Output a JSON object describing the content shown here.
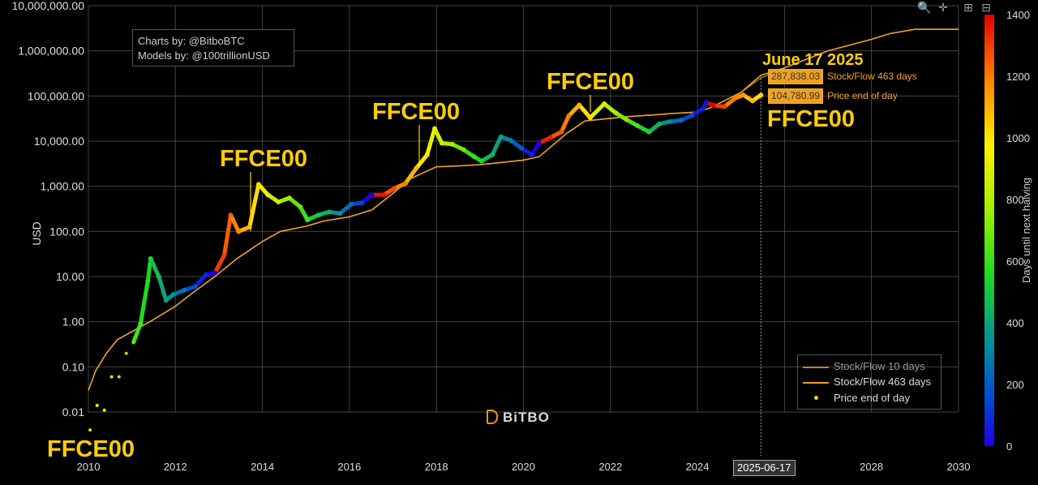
{
  "toolbar": {
    "zoom_label": "Zoom",
    "pan_label": "Pan",
    "zoom_in_label": "Zoom in",
    "zoom_out_label": "Zoom out"
  },
  "credits": {
    "line1": "Charts by: @BitboBTC",
    "line2": "Models by: @100trillionUSD"
  },
  "brand": "BiTBO",
  "annotations": {
    "date_title": "June 17 2025",
    "halving_markers": [
      "FFCE00",
      "FFCE00",
      "FFCE00",
      "FFCE00",
      "FFCE00"
    ]
  },
  "hover": {
    "x_label": "2025-06-17",
    "sf_value": "287,838.03",
    "sf_name": "Stock/Flow 463 days",
    "price_value": "104,780.99",
    "price_name": "Price end of day"
  },
  "colors": {
    "background": "#000000",
    "grid": "#444444",
    "accent": "#f0a020",
    "annotation": "#ffce00",
    "sf10": "#b8862b",
    "sf463": "#f0a020"
  },
  "chart_data": {
    "type": "scatter",
    "title": "",
    "xlabel": "",
    "ylabel": "USD",
    "x_scale": "date",
    "y_scale": "log",
    "xlim": [
      "2010-01-01",
      "2030-01-01"
    ],
    "ylim": [
      0.01,
      10000000
    ],
    "x_ticks": [
      "2010",
      "2012",
      "2014",
      "2016",
      "2018",
      "2020",
      "2022",
      "2024",
      "2026",
      "2028",
      "2030"
    ],
    "y_ticks": [
      "0.01",
      "0.10",
      "1.00",
      "10.00",
      "100.00",
      "1,000.00",
      "10,000.00",
      "100,000.00",
      "1,000,000.00",
      "10,000,000.00"
    ],
    "grid": true,
    "legend_position": "bottom-right",
    "colorbar": {
      "label": "Days until next halving",
      "min": 0,
      "max": 1400,
      "ticks": [
        "0",
        "200",
        "400",
        "600",
        "800",
        "1000",
        "1200",
        "1400"
      ]
    },
    "series": [
      {
        "name": "Stock/Flow 10 days",
        "kind": "line",
        "x": [
          "2010-01-01",
          "2010-03-01",
          "2010-06-01",
          "2010-09-01",
          "2011-01-01",
          "2011-06-01",
          "2012-01-01",
          "2012-06-01",
          "2012-11-28",
          "2013-06-01",
          "2014-01-01",
          "2014-06-01",
          "2015-01-01",
          "2015-06-01",
          "2016-01-01",
          "2016-07-09",
          "2017-01-01",
          "2017-06-01",
          "2018-01-01",
          "2018-06-01",
          "2019-01-01",
          "2019-06-01",
          "2020-01-01",
          "2020-05-11",
          "2021-01-01",
          "2021-06-01",
          "2022-01-01",
          "2022-06-01",
          "2023-01-01",
          "2023-06-01",
          "2024-01-01",
          "2024-04-20",
          "2025-01-01",
          "2025-06-17",
          "2026-01-01",
          "2027-01-01",
          "2028-01-01",
          "2028-06-01",
          "2029-01-01",
          "2029-06-01",
          "2030-01-01"
        ],
        "values": [
          0.03,
          0.08,
          0.2,
          0.4,
          0.6,
          1.0,
          2.2,
          4.5,
          10,
          25,
          60,
          100,
          130,
          170,
          210,
          300,
          700,
          1500,
          2700,
          2800,
          3000,
          3300,
          3800,
          4500,
          15000,
          28000,
          32000,
          35000,
          38000,
          41000,
          44000,
          55000,
          120000,
          250000,
          420000,
          1000000,
          1800000,
          2400000,
          3000000,
          3000000,
          3000000
        ]
      },
      {
        "name": "Stock/Flow 463 days",
        "kind": "line",
        "x": [
          "2010-01-01",
          "2010-03-01",
          "2010-06-01",
          "2010-09-01",
          "2011-01-01",
          "2011-06-01",
          "2012-01-01",
          "2012-06-01",
          "2012-11-28",
          "2013-06-01",
          "2014-01-01",
          "2014-06-01",
          "2015-01-01",
          "2015-06-01",
          "2016-01-01",
          "2016-07-09",
          "2017-01-01",
          "2017-06-01",
          "2018-01-01",
          "2018-06-01",
          "2019-01-01",
          "2019-06-01",
          "2020-01-01",
          "2020-05-11",
          "2021-01-01",
          "2021-06-01",
          "2022-01-01",
          "2022-06-01",
          "2023-01-01",
          "2023-06-01",
          "2024-01-01",
          "2024-04-20",
          "2025-01-01",
          "2025-06-17",
          "2026-01-01",
          "2027-01-01",
          "2028-01-01",
          "2028-06-01",
          "2029-01-01",
          "2029-06-01",
          "2030-01-01"
        ],
        "values": [
          0.03,
          0.08,
          0.2,
          0.4,
          0.6,
          1.0,
          2.2,
          4.5,
          10,
          25,
          60,
          100,
          130,
          170,
          210,
          300,
          700,
          1500,
          2700,
          2800,
          3000,
          3300,
          3800,
          4500,
          15000,
          28000,
          32000,
          35000,
          38000,
          41000,
          44000,
          55000,
          120000,
          287838.03,
          420000,
          1000000,
          1800000,
          2400000,
          3000000,
          3000000,
          3000000
        ]
      },
      {
        "name": "Price end of day",
        "kind": "scatter",
        "color_by": "days_until_next_halving",
        "x": [
          "2010-01-15",
          "2010-03-15",
          "2010-05-15",
          "2010-07-15",
          "2010-09-15",
          "2010-11-15",
          "2011-01-15",
          "2011-03-15",
          "2011-05-15",
          "2011-06-08",
          "2011-08-15",
          "2011-10-15",
          "2011-12-15",
          "2012-03-15",
          "2012-06-15",
          "2012-09-15",
          "2012-11-28",
          "2013-02-15",
          "2013-04-10",
          "2013-06-15",
          "2013-09-15",
          "2013-11-30",
          "2014-02-15",
          "2014-05-15",
          "2014-08-15",
          "2014-11-15",
          "2015-01-14",
          "2015-04-15",
          "2015-07-15",
          "2015-10-15",
          "2016-01-15",
          "2016-04-15",
          "2016-07-09",
          "2016-10-15",
          "2017-01-15",
          "2017-04-15",
          "2017-07-15",
          "2017-10-15",
          "2017-12-17",
          "2018-02-15",
          "2018-05-15",
          "2018-08-15",
          "2018-11-15",
          "2019-01-15",
          "2019-04-15",
          "2019-06-26",
          "2019-09-15",
          "2019-12-15",
          "2020-03-13",
          "2020-05-11",
          "2020-08-15",
          "2020-11-15",
          "2021-01-15",
          "2021-04-14",
          "2021-07-15",
          "2021-11-10",
          "2022-02-15",
          "2022-05-15",
          "2022-08-15",
          "2022-11-21",
          "2023-02-15",
          "2023-05-15",
          "2023-08-15",
          "2023-11-15",
          "2024-02-15",
          "2024-03-14",
          "2024-05-15",
          "2024-08-15",
          "2024-11-15",
          "2025-01-20",
          "2025-04-08",
          "2025-06-17"
        ],
        "values": [
          0.004,
          0.014,
          0.011,
          0.06,
          0.06,
          0.2,
          0.35,
          0.9,
          8,
          25,
          10,
          3,
          4,
          5,
          6,
          11,
          12,
          30,
          230,
          100,
          125,
          1100,
          650,
          450,
          550,
          350,
          180,
          230,
          270,
          250,
          400,
          430,
          650,
          650,
          900,
          1150,
          2500,
          5000,
          19000,
          9000,
          8500,
          6500,
          4500,
          3600,
          5000,
          12500,
          10500,
          7000,
          5000,
          9000,
          12000,
          16000,
          36000,
          63000,
          33000,
          67000,
          42000,
          30000,
          22000,
          16000,
          24000,
          27000,
          29000,
          37000,
          52000,
          72000,
          62000,
          58000,
          90000,
          105000,
          78000,
          104780.99
        ],
        "days_until_next_halving": [
          1040,
          980,
          920,
          860,
          800,
          740,
          680,
          620,
          560,
          535,
          470,
          410,
          350,
          260,
          165,
          75,
          0,
          1300,
          1250,
          1180,
          1090,
          1020,
          940,
          850,
          760,
          670,
          610,
          520,
          430,
          340,
          240,
          150,
          0,
          1370,
          1270,
          1180,
          1090,
          1000,
          930,
          870,
          780,
          690,
          600,
          540,
          450,
          380,
          300,
          200,
          60,
          0,
          1350,
          1260,
          1200,
          1100,
          1010,
          900,
          810,
          720,
          630,
          540,
          440,
          340,
          250,
          160,
          60,
          35,
          1400,
          1300,
          1200,
          1150,
          1080,
          1020
        ]
      }
    ],
    "halving_dates": [
      "2012-11-28",
      "2016-07-09",
      "2020-05-11",
      "2024-04-20"
    ]
  }
}
